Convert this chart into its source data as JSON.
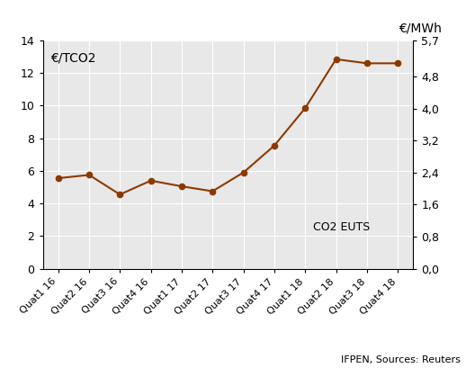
{
  "x_labels": [
    "Quat1 16",
    "Quat2 16",
    "Quat3 16",
    "Quat4 16",
    "Quat1 17",
    "Quat2 17",
    "Quat3 17",
    "Quat4 17",
    "Quat1 18",
    "Quat2 18",
    "Quat3 18",
    "Quat4 18"
  ],
  "y_values": [
    5.55,
    5.75,
    4.55,
    5.4,
    5.05,
    4.75,
    5.9,
    7.55,
    9.85,
    12.85,
    12.6,
    12.6
  ],
  "line_color": "#8B3A00",
  "marker_color": "#8B3A00",
  "left_ylabel_inside": "€/TCO2",
  "right_ylabel_above": "€/MWh",
  "annotation": "CO2 EUTS",
  "source": "IFPEN, Sources: Reuters",
  "left_ylim": [
    0,
    14
  ],
  "left_yticks": [
    0,
    2,
    4,
    6,
    8,
    10,
    12,
    14
  ],
  "right_ylim": [
    0.0,
    5.7
  ],
  "right_yticks_labels": [
    "0,0",
    "0,8",
    "1,6",
    "2,4",
    "3,2",
    "4,0",
    "4,8",
    "5,7"
  ],
  "right_yticks_values": [
    0.0,
    0.8,
    1.6,
    2.4,
    3.2,
    4.0,
    4.8,
    5.7
  ],
  "plot_bg_color": "#e8e8e8",
  "fig_bg_color": "#ffffff",
  "grid_color": "#ffffff"
}
